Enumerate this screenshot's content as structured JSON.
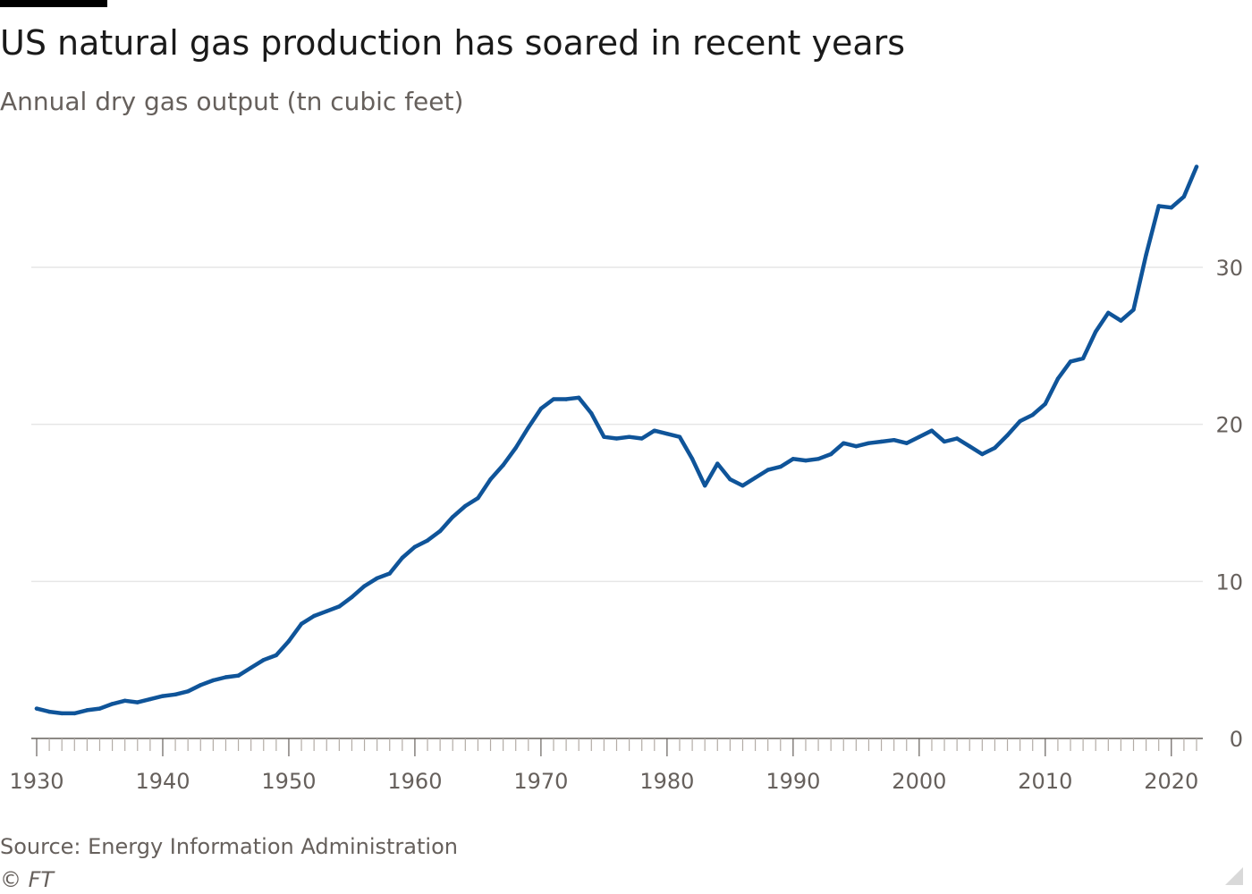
{
  "header": {
    "title": "US natural gas production has soared in recent years",
    "subtitle": "Annual dry gas output (tn cubic feet)"
  },
  "footer": {
    "source": "Source: Energy Information Administration",
    "credit": "© FT"
  },
  "colors": {
    "line": "#0f5499",
    "grid": "#e6e6e6",
    "axis": "#66605c",
    "text": "#1a1a1a"
  },
  "chart_data": {
    "type": "line",
    "title": "US natural gas production has soared in recent years",
    "subtitle": "Annual dry gas output (tn cubic feet)",
    "xlabel": "",
    "ylabel": "",
    "xlim": [
      1930,
      2022
    ],
    "ylim": [
      0,
      37
    ],
    "grid": true,
    "legend": "none",
    "y_axis_position": "right",
    "x_ticks": [
      1930,
      1940,
      1950,
      1960,
      1970,
      1980,
      1990,
      2000,
      2010,
      2020
    ],
    "y_ticks": [
      0,
      10,
      20,
      30
    ],
    "series": [
      {
        "x": [
          1930,
          1931,
          1932,
          1933,
          1934,
          1935,
          1936,
          1937,
          1938,
          1939,
          1940,
          1941,
          1942,
          1943,
          1944,
          1945,
          1946,
          1947,
          1948,
          1949,
          1950,
          1951,
          1952,
          1953,
          1954,
          1955,
          1956,
          1957,
          1958,
          1959,
          1960,
          1961,
          1962,
          1963,
          1964,
          1965,
          1966,
          1967,
          1968,
          1969,
          1970,
          1971,
          1972,
          1973,
          1974,
          1975,
          1976,
          1977,
          1978,
          1979,
          1980,
          1981,
          1982,
          1983,
          1984,
          1985,
          1986,
          1987,
          1988,
          1989,
          1990,
          1991,
          1992,
          1993,
          1994,
          1995,
          1996,
          1997,
          1998,
          1999,
          2000,
          2001,
          2002,
          2003,
          2004,
          2005,
          2006,
          2007,
          2008,
          2009,
          2010,
          2011,
          2012,
          2013,
          2014,
          2015,
          2016,
          2017,
          2018,
          2019,
          2020,
          2021,
          2022
        ],
        "values": [
          1.9,
          1.7,
          1.6,
          1.6,
          1.8,
          1.9,
          2.2,
          2.4,
          2.3,
          2.5,
          2.7,
          2.8,
          3.0,
          3.4,
          3.7,
          3.9,
          4.0,
          4.5,
          5.0,
          5.3,
          6.2,
          7.3,
          7.8,
          8.1,
          8.4,
          9.0,
          9.7,
          10.2,
          10.5,
          11.5,
          12.2,
          12.6,
          13.2,
          14.1,
          14.8,
          15.3,
          16.5,
          17.4,
          18.5,
          19.8,
          21.0,
          21.6,
          21.6,
          21.7,
          20.7,
          19.2,
          19.1,
          19.2,
          19.1,
          19.6,
          19.4,
          19.2,
          17.8,
          16.1,
          17.5,
          16.5,
          16.1,
          16.6,
          17.1,
          17.3,
          17.8,
          17.7,
          17.8,
          18.1,
          18.8,
          18.6,
          18.8,
          18.9,
          19.0,
          18.8,
          19.2,
          19.6,
          18.9,
          19.1,
          18.6,
          18.1,
          18.5,
          19.3,
          20.2,
          20.6,
          21.3,
          22.9,
          24.0,
          24.2,
          25.9,
          27.1,
          26.6,
          27.3,
          30.8,
          33.9,
          33.8,
          34.5,
          36.4
        ]
      }
    ]
  }
}
